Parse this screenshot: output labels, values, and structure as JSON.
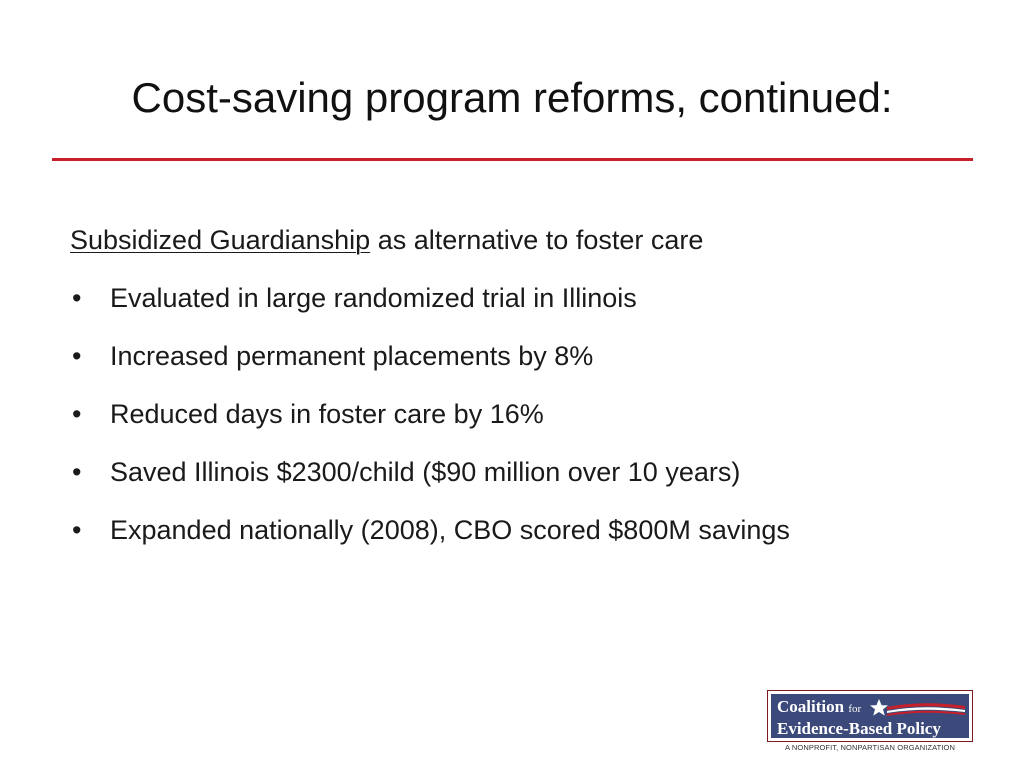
{
  "slide": {
    "title": "Cost-saving program reforms, continued:",
    "intro": {
      "underlined_text": "Subsidized Guardianship",
      "rest_text": " as alternative to foster care"
    },
    "bullet_glyph": "•",
    "bullets": [
      "Evaluated in large randomized trial in Illinois",
      "Increased permanent placements by 8%",
      "Reduced days in foster care by 16%",
      "Saved Illinois $2300/child ($90 million over 10 years)",
      "Expanded nationally (2008), CBO scored $800M savings"
    ]
  },
  "logo": {
    "line1_main": "Coalition",
    "line1_small": "for",
    "line2": "Evidence-Based Policy",
    "tagline": "A NONPROFIT, NONPARTISAN ORGANIZATION"
  },
  "colors": {
    "accent_rule": "#c8202a",
    "logo_navy": "#3b4a7a",
    "logo_red": "#c8202a"
  }
}
